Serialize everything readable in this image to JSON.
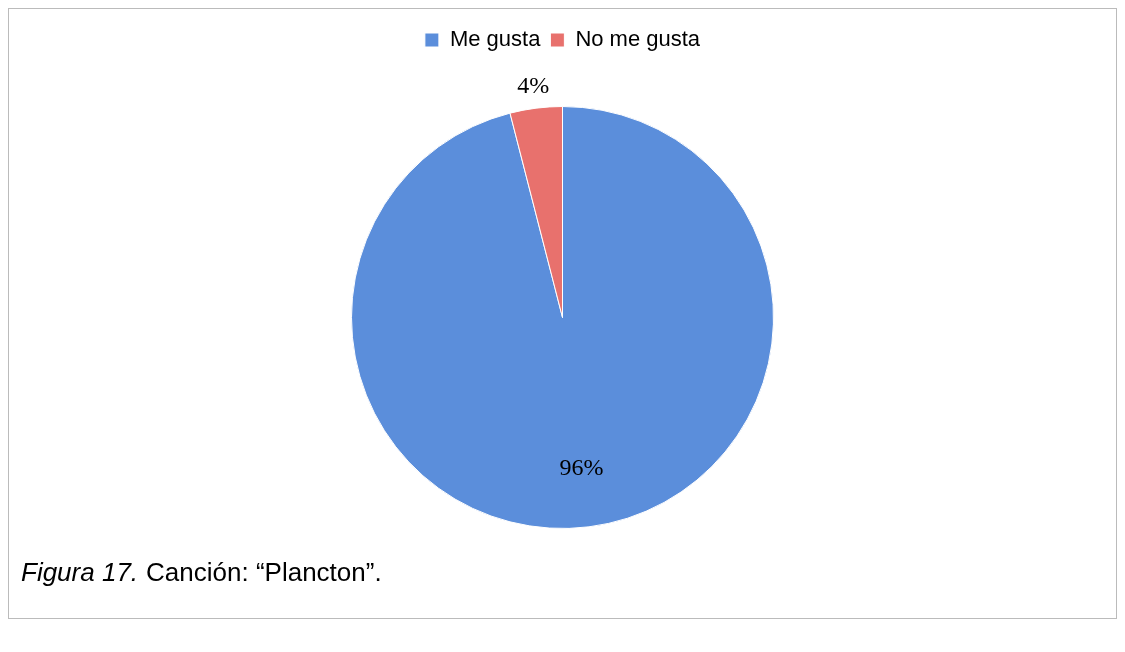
{
  "chart_data": {
    "type": "pie",
    "categories": [
      "Me gusta",
      "No me gusta"
    ],
    "values": [
      96,
      4
    ],
    "colors": [
      "#5b8edb",
      "#e8716d"
    ],
    "value_labels": [
      "96%",
      "4%"
    ],
    "legend": "top",
    "annotations": [
      "Figura 17.",
      "Canción: “Plancton”."
    ]
  }
}
